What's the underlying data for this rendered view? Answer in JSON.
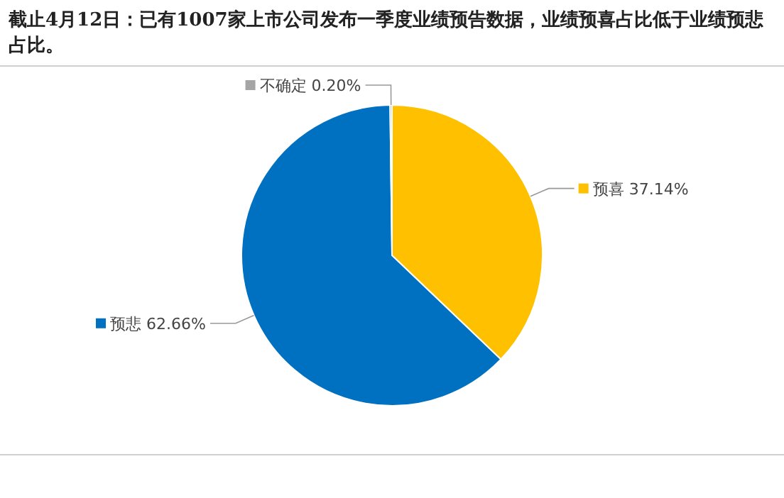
{
  "chart_data": {
    "type": "pie",
    "title": "截止4月12日：已有1007家上市公司发布一季度业绩预告数据，业绩预喜占比低于业绩预悲占比。",
    "categories": [
      "预喜",
      "预悲",
      "不确定"
    ],
    "values": [
      37.14,
      62.66,
      0.2
    ],
    "value_labels": [
      "37.14%",
      "62.66%",
      "0.20%"
    ],
    "colors": [
      "#ffc000",
      "#0070c0",
      "#a5a5a5"
    ],
    "legend": "top right"
  }
}
